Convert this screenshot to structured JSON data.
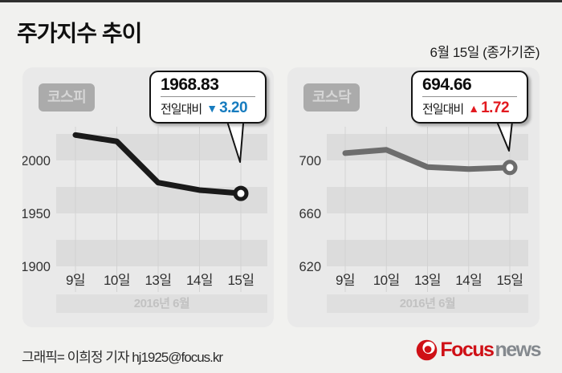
{
  "header": {
    "title": "주가지수 추이",
    "date_note": "6월 15일 (종가기준)"
  },
  "chart_data": [
    {
      "type": "line",
      "name": "KOSPI",
      "chip_label": "코스피",
      "x_labels": [
        "9일",
        "10일",
        "13일",
        "14일",
        "15일"
      ],
      "values": [
        2024,
        2018,
        1979,
        1972,
        1968.83
      ],
      "y_ticks": [
        2000,
        1950,
        1900
      ],
      "band_step": 25,
      "ylim": [
        1876,
        2032
      ],
      "x_footer": "2016년 6월",
      "line_color": "#1a1a1a",
      "grid": "horizontal-bands",
      "legend": "none",
      "callout": {
        "value": "1968.83",
        "prefix": "전일대비",
        "direction": "down",
        "arrow": "▼",
        "delta": "3.20",
        "color": "#177cbf"
      }
    },
    {
      "type": "line",
      "name": "KOSDAQ",
      "chip_label": "코스닥",
      "x_labels": [
        "9일",
        "10일",
        "13일",
        "14일",
        "15일"
      ],
      "values": [
        705.5,
        708,
        695,
        693.5,
        694.66
      ],
      "y_ticks": [
        700,
        660,
        620
      ],
      "band_step": 20,
      "ylim": [
        604,
        740
      ],
      "x_footer": "2016년 6월",
      "line_color": "#6d6d6d",
      "grid": "horizontal-bands",
      "legend": "none",
      "callout": {
        "value": "694.66",
        "prefix": "전일대비",
        "direction": "up",
        "arrow": "▲",
        "delta": "1.72",
        "color": "#e2191f"
      }
    }
  ],
  "footer": {
    "credit": "그래픽= 이희정 기자 hj1925@focus.kr",
    "logo": {
      "icon": "focus-swirl-icon",
      "brand": "Focus",
      "suffix": "news"
    }
  },
  "colors": {
    "page_bg": "#f1f1ef",
    "panel_bg": "#e9e9e9",
    "stripe": "#dcdcdc",
    "down_blue": "#177cbf",
    "up_red": "#e2191f"
  }
}
